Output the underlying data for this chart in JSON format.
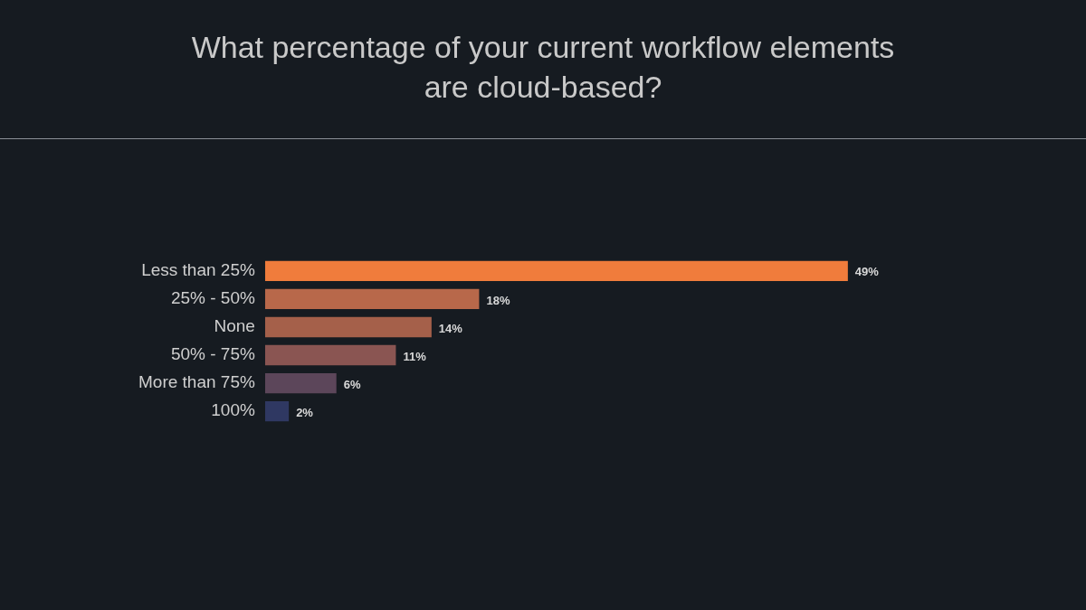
{
  "chart_data": {
    "type": "bar",
    "orientation": "horizontal",
    "title": "What percentage of your current workflow elements are cloud-based?",
    "categories": [
      "Less than 25%",
      "25% - 50%",
      "None",
      "50% - 75%",
      "More than 75%",
      "100%"
    ],
    "values": [
      49,
      18,
      14,
      11,
      6,
      2
    ],
    "value_labels": [
      "49%",
      "18%",
      "14%",
      "11%",
      "6%",
      "2%"
    ],
    "colors": [
      "#f07c3c",
      "#b8684a",
      "#a5604a",
      "#8a5552",
      "#5c465a",
      "#2f3862"
    ],
    "legend": false
  }
}
